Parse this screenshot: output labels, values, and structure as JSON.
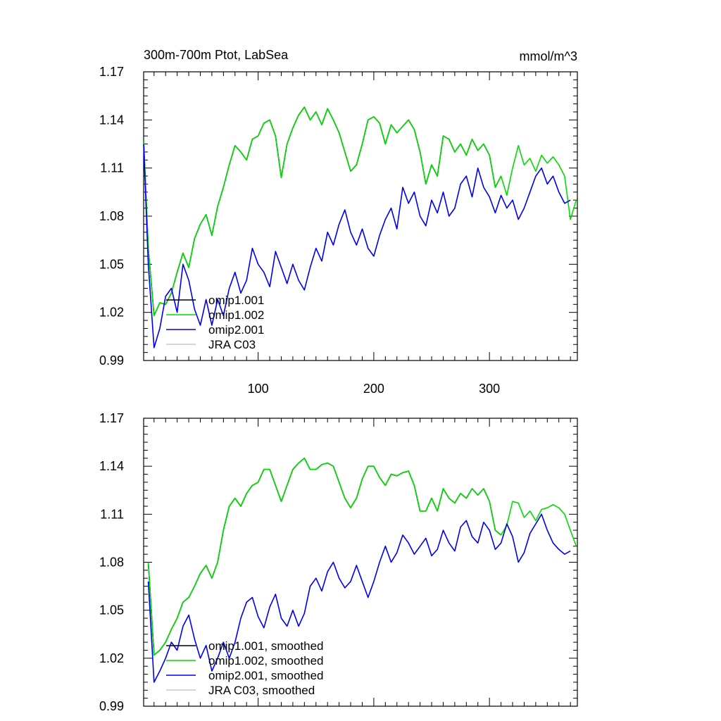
{
  "page": {
    "title_left": "300m-700m Ptot, LabSea",
    "title_right": "mmol/m^3"
  },
  "chart_data": [
    {
      "type": "line",
      "panel": "top",
      "title": "300m-700m Ptot, LabSea",
      "units": "mmol/m^3",
      "xlim": [
        1,
        376
      ],
      "ylim": [
        0.99,
        1.17
      ],
      "yticks": [
        "1.17",
        "1.14",
        "1.11",
        "1.08",
        "1.05",
        "1.02",
        "0.99"
      ],
      "xticks": [
        "100",
        "200",
        "300"
      ],
      "legend_position": "bottom-left",
      "legend": [
        "omip1.001",
        "omip1.002",
        "omip2.001",
        "JRA C03"
      ],
      "series": [
        {
          "name": "omip1.001",
          "color": "#000000",
          "x": [
            1,
            5,
            10,
            15,
            20,
            25,
            30,
            35,
            40,
            45,
            50,
            55,
            60,
            65,
            70,
            75,
            80,
            85,
            90,
            95,
            100,
            105,
            110,
            115,
            120,
            125,
            130,
            135,
            140,
            145,
            150,
            155,
            160,
            165,
            170,
            175,
            180,
            185,
            190,
            195,
            200,
            205,
            210,
            215,
            220,
            225,
            230,
            235,
            240,
            245,
            250,
            255,
            260,
            265,
            270,
            275,
            280,
            285,
            290,
            295,
            300,
            305,
            310
          ],
          "y": [
            1.127,
            1.06,
            1.018,
            1.026,
            1.025,
            1.032,
            1.045,
            1.057,
            1.048,
            1.066,
            1.075,
            1.081,
            1.068,
            1.086,
            1.098,
            1.112,
            1.124,
            1.12,
            1.115,
            1.128,
            1.13,
            1.138,
            1.14,
            1.13,
            1.104,
            1.125,
            1.135,
            1.143,
            1.148,
            1.14,
            1.145,
            1.137,
            1.147,
            1.14,
            1.132,
            1.12,
            1.108,
            1.112,
            1.125,
            1.14,
            1.142,
            1.138,
            1.125,
            1.137,
            1.132,
            1.136,
            1.14,
            1.134,
            1.12,
            1.1,
            1.112,
            1.105,
            1.13,
            1.128,
            1.12,
            1.125,
            1.118,
            1.128,
            1.121,
            1.125,
            1.118,
            1.098,
            1.105
          ]
        },
        {
          "name": "omip1.002",
          "color": "#00dd00",
          "x": [
            1,
            5,
            10,
            15,
            20,
            25,
            30,
            35,
            40,
            45,
            50,
            55,
            60,
            65,
            70,
            75,
            80,
            85,
            90,
            95,
            100,
            105,
            110,
            115,
            120,
            125,
            130,
            135,
            140,
            145,
            150,
            155,
            160,
            165,
            170,
            175,
            180,
            185,
            190,
            195,
            200,
            205,
            210,
            215,
            220,
            225,
            230,
            235,
            240,
            245,
            250,
            255,
            260,
            265,
            270,
            275,
            280,
            285,
            290,
            295,
            300,
            305,
            310,
            315,
            320,
            325,
            330,
            335,
            340,
            345,
            350,
            355,
            360,
            365,
            370,
            375
          ],
          "y": [
            1.127,
            1.06,
            1.018,
            1.026,
            1.025,
            1.032,
            1.045,
            1.057,
            1.048,
            1.066,
            1.075,
            1.081,
            1.068,
            1.086,
            1.098,
            1.112,
            1.124,
            1.12,
            1.115,
            1.128,
            1.13,
            1.138,
            1.14,
            1.13,
            1.104,
            1.125,
            1.135,
            1.143,
            1.148,
            1.14,
            1.145,
            1.137,
            1.147,
            1.14,
            1.132,
            1.12,
            1.108,
            1.112,
            1.125,
            1.14,
            1.142,
            1.138,
            1.125,
            1.137,
            1.132,
            1.136,
            1.14,
            1.134,
            1.12,
            1.1,
            1.112,
            1.105,
            1.13,
            1.128,
            1.12,
            1.125,
            1.118,
            1.128,
            1.121,
            1.125,
            1.118,
            1.098,
            1.105,
            1.093,
            1.11,
            1.124,
            1.112,
            1.116,
            1.108,
            1.118,
            1.113,
            1.117,
            1.112,
            1.105,
            1.078,
            1.09
          ]
        },
        {
          "name": "omip2.001",
          "color": "#0000ee",
          "x": [
            1,
            5,
            10,
            15,
            20,
            25,
            30,
            35,
            40,
            45,
            50,
            55,
            60,
            65,
            70,
            75,
            80,
            85,
            90,
            95,
            100,
            105,
            110,
            115,
            120,
            125,
            130,
            135,
            140,
            145,
            150,
            155,
            160,
            165,
            170,
            175,
            180,
            185,
            190,
            195,
            200,
            205,
            210,
            215,
            220,
            225,
            230,
            235,
            240,
            245,
            250,
            255,
            260,
            265,
            270,
            275,
            280,
            285,
            290,
            295,
            300,
            305,
            310,
            315,
            320,
            325,
            330,
            335,
            340,
            345,
            350,
            355,
            360,
            365,
            370
          ],
          "y": [
            1.125,
            1.05,
            0.998,
            1.01,
            1.03,
            1.035,
            1.02,
            1.05,
            1.04,
            1.022,
            1.012,
            1.028,
            1.012,
            1.028,
            1.018,
            1.035,
            1.045,
            1.032,
            1.04,
            1.06,
            1.05,
            1.045,
            1.036,
            1.058,
            1.048,
            1.038,
            1.05,
            1.04,
            1.034,
            1.048,
            1.06,
            1.052,
            1.07,
            1.062,
            1.075,
            1.084,
            1.07,
            1.062,
            1.072,
            1.06,
            1.055,
            1.068,
            1.078,
            1.085,
            1.072,
            1.098,
            1.088,
            1.095,
            1.08,
            1.074,
            1.09,
            1.082,
            1.095,
            1.08,
            1.085,
            1.1,
            1.105,
            1.092,
            1.11,
            1.098,
            1.092,
            1.082,
            1.093,
            1.085,
            1.09,
            1.078,
            1.085,
            1.095,
            1.105,
            1.11,
            1.1,
            1.105,
            1.095,
            1.088,
            1.09
          ]
        },
        {
          "name": "JRA C03",
          "color": "#c8c8c8",
          "x": [],
          "y": []
        }
      ]
    },
    {
      "type": "line",
      "panel": "bottom",
      "xlim": [
        1,
        376
      ],
      "ylim": [
        0.99,
        1.17
      ],
      "yticks": [
        "1.17",
        "1.14",
        "1.11",
        "1.08",
        "1.05",
        "1.02",
        "0.99"
      ],
      "legend_position": "bottom-left",
      "legend": [
        "omip1.001, smoothed",
        "omip1.002, smoothed",
        "omip2.001, smoothed",
        "JRA C03, smoothed"
      ],
      "series": [
        {
          "name": "omip1.001, smoothed",
          "color": "#000000",
          "x": [
            5,
            10,
            15,
            20,
            25,
            30,
            35,
            40,
            45,
            50,
            55,
            60,
            65,
            70,
            75,
            80,
            85,
            90,
            95,
            100,
            105,
            110,
            115,
            120,
            125,
            130,
            135,
            140,
            145,
            150,
            155,
            160,
            165,
            170,
            175,
            180,
            185,
            190,
            195,
            200,
            205,
            210,
            215,
            220,
            225,
            230,
            235,
            240,
            245,
            250,
            255,
            260,
            265,
            270,
            275,
            280,
            285,
            290,
            295,
            300,
            305,
            310
          ],
          "y": [
            1.08,
            1.022,
            1.025,
            1.03,
            1.038,
            1.045,
            1.055,
            1.058,
            1.065,
            1.073,
            1.078,
            1.07,
            1.08,
            1.1,
            1.115,
            1.12,
            1.115,
            1.123,
            1.128,
            1.13,
            1.138,
            1.138,
            1.128,
            1.118,
            1.128,
            1.138,
            1.142,
            1.145,
            1.138,
            1.138,
            1.141,
            1.142,
            1.14,
            1.13,
            1.12,
            1.114,
            1.12,
            1.132,
            1.14,
            1.14,
            1.133,
            1.128,
            1.135,
            1.134,
            1.136,
            1.137,
            1.128,
            1.112,
            1.112,
            1.12,
            1.112,
            1.126,
            1.12,
            1.117,
            1.123,
            1.12,
            1.126,
            1.122,
            1.126,
            1.118,
            1.1,
            1.097
          ]
        },
        {
          "name": "omip1.002, smoothed",
          "color": "#00dd00",
          "x": [
            5,
            10,
            15,
            20,
            25,
            30,
            35,
            40,
            45,
            50,
            55,
            60,
            65,
            70,
            75,
            80,
            85,
            90,
            95,
            100,
            105,
            110,
            115,
            120,
            125,
            130,
            135,
            140,
            145,
            150,
            155,
            160,
            165,
            170,
            175,
            180,
            185,
            190,
            195,
            200,
            205,
            210,
            215,
            220,
            225,
            230,
            235,
            240,
            245,
            250,
            255,
            260,
            265,
            270,
            275,
            280,
            285,
            290,
            295,
            300,
            305,
            310,
            315,
            320,
            325,
            330,
            335,
            340,
            345,
            350,
            355,
            360,
            365,
            370,
            375
          ],
          "y": [
            1.08,
            1.022,
            1.025,
            1.03,
            1.038,
            1.045,
            1.055,
            1.058,
            1.065,
            1.073,
            1.078,
            1.07,
            1.08,
            1.1,
            1.115,
            1.12,
            1.115,
            1.123,
            1.128,
            1.13,
            1.138,
            1.138,
            1.128,
            1.118,
            1.128,
            1.138,
            1.142,
            1.145,
            1.138,
            1.138,
            1.141,
            1.142,
            1.14,
            1.13,
            1.12,
            1.114,
            1.12,
            1.132,
            1.14,
            1.14,
            1.133,
            1.128,
            1.135,
            1.134,
            1.136,
            1.137,
            1.128,
            1.112,
            1.112,
            1.12,
            1.112,
            1.126,
            1.12,
            1.117,
            1.123,
            1.12,
            1.126,
            1.122,
            1.126,
            1.118,
            1.1,
            1.097,
            1.103,
            1.118,
            1.117,
            1.108,
            1.112,
            1.106,
            1.113,
            1.114,
            1.116,
            1.114,
            1.11,
            1.1,
            1.09
          ]
        },
        {
          "name": "omip2.001, smoothed",
          "color": "#0000ee",
          "x": [
            5,
            10,
            15,
            20,
            25,
            30,
            35,
            40,
            45,
            50,
            55,
            60,
            65,
            70,
            75,
            80,
            85,
            90,
            95,
            100,
            105,
            110,
            115,
            120,
            125,
            130,
            135,
            140,
            145,
            150,
            155,
            160,
            165,
            170,
            175,
            180,
            185,
            190,
            195,
            200,
            205,
            210,
            215,
            220,
            225,
            230,
            235,
            240,
            245,
            250,
            255,
            260,
            265,
            270,
            275,
            280,
            285,
            290,
            295,
            300,
            305,
            310,
            315,
            320,
            325,
            330,
            335,
            340,
            345,
            350,
            355,
            360,
            365,
            370
          ],
          "y": [
            1.068,
            1.005,
            1.012,
            1.02,
            1.03,
            1.025,
            1.04,
            1.047,
            1.032,
            1.02,
            1.028,
            1.012,
            1.02,
            1.03,
            1.02,
            1.03,
            1.045,
            1.055,
            1.058,
            1.046,
            1.039,
            1.052,
            1.06,
            1.045,
            1.04,
            1.05,
            1.04,
            1.048,
            1.065,
            1.07,
            1.062,
            1.074,
            1.08,
            1.07,
            1.064,
            1.068,
            1.078,
            1.068,
            1.058,
            1.068,
            1.08,
            1.09,
            1.08,
            1.086,
            1.097,
            1.092,
            1.085,
            1.09,
            1.095,
            1.084,
            1.088,
            1.1,
            1.092,
            1.087,
            1.102,
            1.106,
            1.096,
            1.092,
            1.105,
            1.1,
            1.088,
            1.092,
            1.104,
            1.096,
            1.08,
            1.086,
            1.098,
            1.104,
            1.11,
            1.1,
            1.092,
            1.088,
            1.085,
            1.087
          ]
        },
        {
          "name": "JRA C03, smoothed",
          "color": "#c8c8c8",
          "x": [],
          "y": []
        }
      ]
    }
  ]
}
